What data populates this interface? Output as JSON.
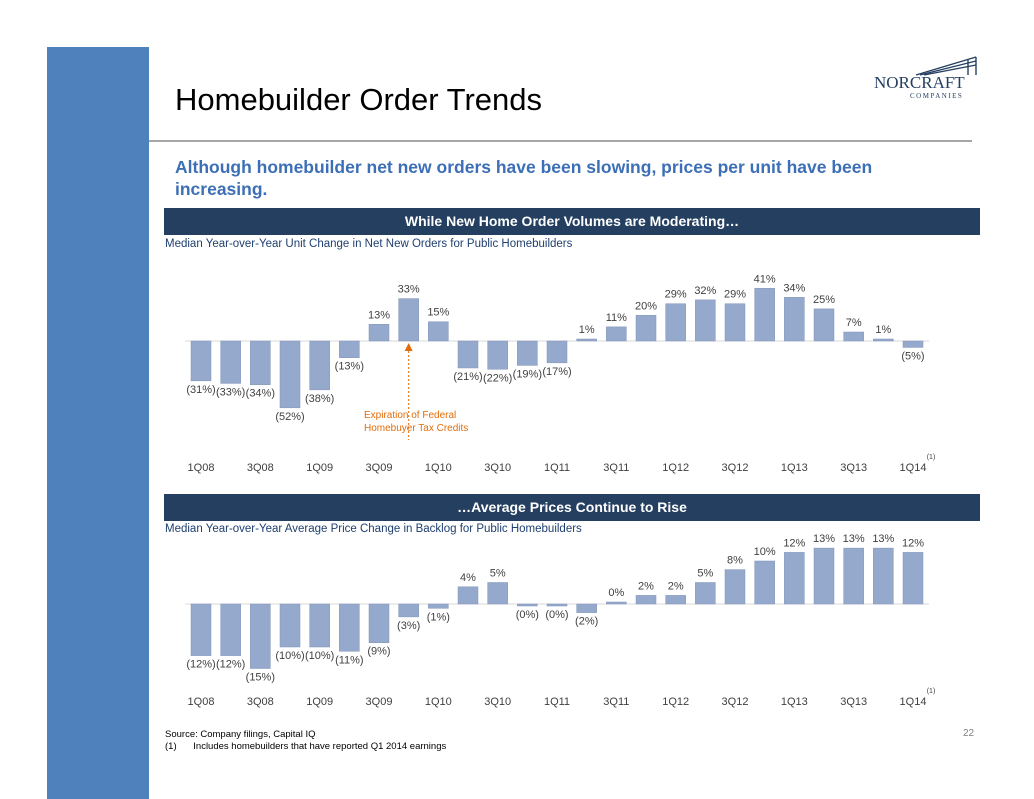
{
  "slide": {
    "title": "Homebuilder Order Trends",
    "subtitle": "Although homebuilder net new orders have been slowing, prices per unit have been increasing.",
    "logo_main": "NORCRAFT",
    "logo_sub": "COMPANIES",
    "page_number": "22",
    "source": "Source: Company filings, Capital IQ",
    "footnote_marker": "(1)",
    "footnote_text": "Includes homebuilders that have reported Q1 2014 earnings",
    "colors": {
      "sidebar": "#4F81BD",
      "band": "#243F60",
      "bar": "#95A9CC",
      "subtitle": "#3D6FB6",
      "annotation": "#E36C0A"
    }
  },
  "chart_data": [
    {
      "type": "bar",
      "band_title": "While New Home Order Volumes are Moderating…",
      "title": "Median Year-over-Year Unit Change in Net New Orders for Public Homebuilders",
      "x_tick_labels": [
        "1Q08",
        "3Q08",
        "1Q09",
        "3Q09",
        "1Q10",
        "3Q10",
        "1Q11",
        "3Q11",
        "1Q12",
        "3Q12",
        "1Q13",
        "3Q13",
        "1Q14"
      ],
      "x_tick_note": "(1)",
      "values": [
        -31,
        -33,
        -34,
        -52,
        -38,
        -13,
        13,
        33,
        15,
        -21,
        -22,
        -19,
        -17,
        1,
        11,
        20,
        29,
        32,
        29,
        41,
        34,
        25,
        7,
        1,
        -5
      ],
      "labels": [
        "(31%)",
        "(33%)",
        "(34%)",
        "(52%)",
        "(38%)",
        "(13%)",
        "13%",
        "33%",
        "15%",
        "(21%)",
        "(22%)",
        "(19%)",
        "(17%)",
        "1%",
        "11%",
        "20%",
        "29%",
        "32%",
        "29%",
        "41%",
        "34%",
        "25%",
        "7%",
        "1%",
        "(5%)"
      ],
      "annotation": {
        "text_line1": "Expiration of Federal",
        "text_line2": "Homebuyer Tax Credits",
        "bar_index": 7
      }
    },
    {
      "type": "bar",
      "band_title": "…Average Prices Continue to Rise",
      "title": "Median Year-over-Year Average Price Change in Backlog for Public Homebuilders",
      "x_tick_labels": [
        "1Q08",
        "3Q08",
        "1Q09",
        "3Q09",
        "1Q10",
        "3Q10",
        "1Q11",
        "3Q11",
        "1Q12",
        "3Q12",
        "1Q13",
        "3Q13",
        "1Q14"
      ],
      "x_tick_note": "(1)",
      "values": [
        -12,
        -12,
        -15,
        -10,
        -10,
        -11,
        -9,
        -3,
        -1,
        4,
        5,
        -0.3,
        -0.3,
        -2,
        0.3,
        2,
        2,
        5,
        8,
        10,
        12,
        13,
        13,
        13,
        12
      ],
      "labels": [
        "(12%)",
        "(12%)",
        "(15%)",
        "(10%)",
        "(10%)",
        "(11%)",
        "(9%)",
        "(3%)",
        "(1%)",
        "4%",
        "5%",
        "(0%)",
        "(0%)",
        "(2%)",
        "0%",
        "2%",
        "2%",
        "5%",
        "8%",
        "10%",
        "12%",
        "13%",
        "13%",
        "13%",
        "12%"
      ]
    }
  ]
}
